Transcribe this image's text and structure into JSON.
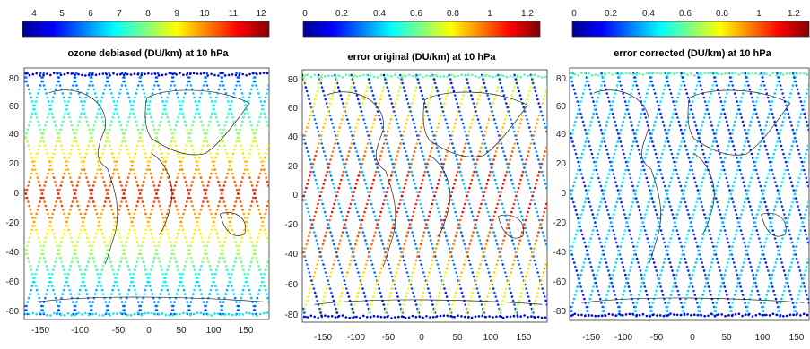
{
  "panels": [
    {
      "title": "ozone debiased (DU/km) at 10 hPa",
      "colorbar_ticks": [
        "4",
        "5",
        "6",
        "7",
        "8",
        "9",
        "10",
        "11",
        "12"
      ],
      "x_ticks": [
        "-150",
        "-100",
        "-50",
        "0",
        "50",
        "100",
        "150"
      ],
      "y_ticks": [
        "80",
        "60",
        "40",
        "20",
        "0",
        "-20",
        "-40",
        "-60",
        "-80"
      ]
    },
    {
      "title": "error original (DU/km) at 10 hPa",
      "colorbar_ticks": [
        "0",
        "0.2",
        "0.4",
        "0.6",
        "0.8",
        "1",
        "1.2"
      ],
      "x_ticks": [
        "-150",
        "-100",
        "-50",
        "0",
        "50",
        "100",
        "150"
      ],
      "y_ticks": [
        "80",
        "60",
        "40",
        "20",
        "0",
        "-20",
        "-40",
        "-60",
        "-80"
      ]
    },
    {
      "title": "error corrected (DU/km) at 10 hPa",
      "colorbar_ticks": [
        "0",
        "0.2",
        "0.4",
        "0.6",
        "0.8",
        "1",
        "1.2"
      ],
      "x_ticks": [
        "-150",
        "-100",
        "-50",
        "0",
        "50",
        "100",
        "150"
      ],
      "y_ticks": [
        "80",
        "60",
        "40",
        "20",
        "0",
        "-20",
        "-40",
        "-60",
        "-80"
      ]
    }
  ],
  "colormap": [
    "#00008f",
    "#0000ff",
    "#0080ff",
    "#00ffff",
    "#80ff80",
    "#ffff00",
    "#ff8000",
    "#ff0000",
    "#800000"
  ]
}
